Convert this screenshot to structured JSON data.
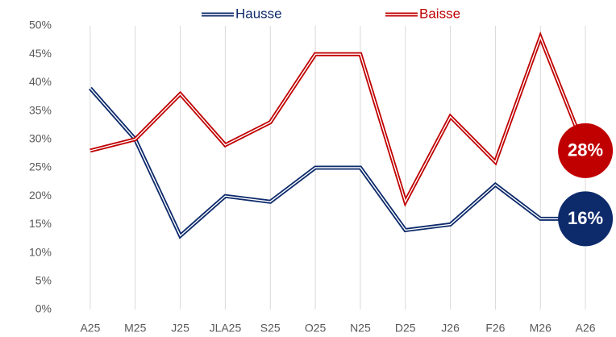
{
  "chart_data": {
    "type": "line",
    "categories": [
      "A25",
      "M25",
      "J25",
      "JLA25",
      "S25",
      "O25",
      "N25",
      "D25",
      "J26",
      "F26",
      "M26",
      "A26"
    ],
    "series": [
      {
        "name": "Hausse",
        "color": "#0d2a6b",
        "values": [
          39,
          30,
          13,
          20,
          19,
          25,
          25,
          14,
          15,
          22,
          16,
          16
        ],
        "value_labels": [
          null,
          null,
          null,
          null,
          null,
          null,
          null,
          null,
          null,
          null,
          null,
          "16%"
        ]
      },
      {
        "name": "Baisse",
        "color": "#c00000",
        "values": [
          28,
          30,
          38,
          29,
          33,
          45,
          45,
          19,
          34,
          26,
          48,
          28
        ],
        "value_labels": [
          null,
          null,
          null,
          null,
          null,
          null,
          null,
          null,
          null,
          null,
          null,
          "28%"
        ]
      }
    ],
    "ylim": [
      0,
      50
    ],
    "yticks": [
      {
        "value": 0,
        "label": "0%"
      },
      {
        "value": 5,
        "label": "5%"
      },
      {
        "value": 10,
        "label": "10%"
      },
      {
        "value": 15,
        "label": "15%"
      },
      {
        "value": 20,
        "label": "20%"
      },
      {
        "value": 25,
        "label": "25%"
      },
      {
        "value": 30,
        "label": "30%"
      },
      {
        "value": 35,
        "label": "35%"
      },
      {
        "value": 40,
        "label": "40%"
      },
      {
        "value": 45,
        "label": "45%"
      },
      {
        "value": 50,
        "label": "50%"
      }
    ],
    "grid": true,
    "legend": "top"
  }
}
